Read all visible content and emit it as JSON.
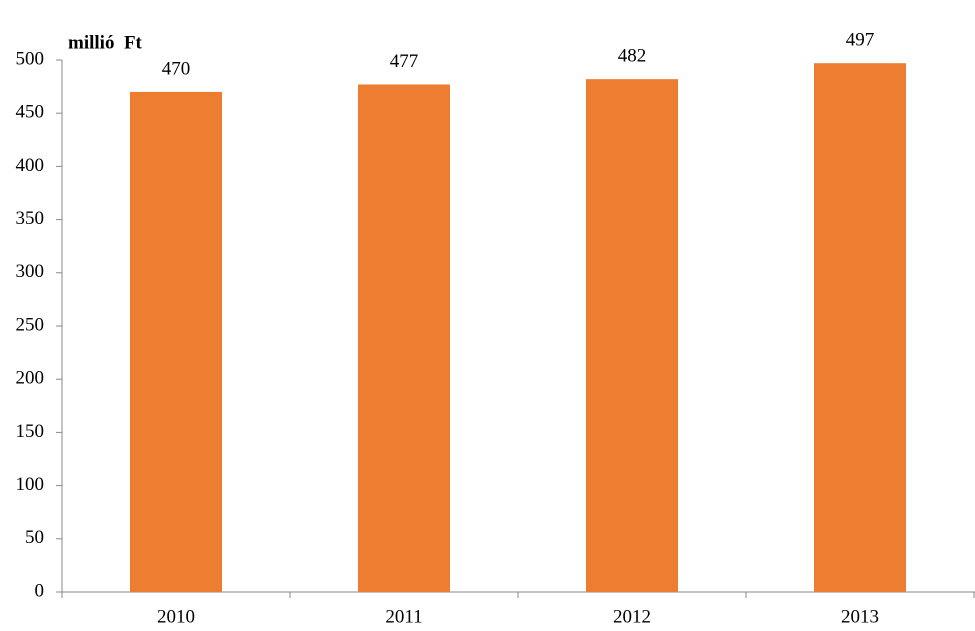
{
  "chart_data": {
    "type": "bar",
    "y_label": "millió  Ft",
    "categories": [
      "2010",
      "2011",
      "2012",
      "2013"
    ],
    "values": [
      470,
      477,
      482,
      497
    ],
    "color": "#ed7d31",
    "ylim": [
      0,
      500
    ],
    "yticks": [
      0,
      50,
      100,
      150,
      200,
      250,
      300,
      350,
      400,
      450,
      500
    ],
    "grid": false
  }
}
